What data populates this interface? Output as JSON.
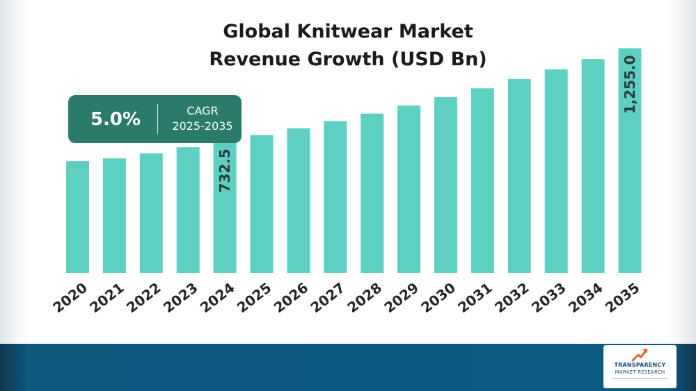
{
  "title_lines": [
    "Global Knitwear Market",
    "Revenue Growth (USD Bn)"
  ],
  "cagr": {
    "value": "5.0%",
    "label": "CAGR",
    "period": "2025-2035"
  },
  "logo": {
    "line1": "TRANSPARENCY",
    "line2": "MARKET RESEARCH",
    "icon": "upward-arrow-icon"
  },
  "colors": {
    "bar": "#5dd0c2",
    "cagr_box": "#2a7b6b",
    "footer": "#0b5a81",
    "label": "#2b3b3a"
  },
  "chart_data": {
    "type": "bar",
    "title": "Global Knitwear Market Revenue Growth (USD Bn)",
    "xlabel": "",
    "ylabel": "",
    "categories": [
      "2020",
      "2021",
      "2022",
      "2023",
      "2024",
      "2025",
      "2026",
      "2027",
      "2028",
      "2029",
      "2030",
      "2031",
      "2032",
      "2033",
      "2034",
      "2035"
    ],
    "values": [
      624,
      640,
      668,
      702,
      732.5,
      770,
      808,
      848,
      890,
      935,
      982,
      1031,
      1083,
      1137,
      1194,
      1255.0
    ],
    "data_labels": {
      "2024": "732.5",
      "2035": "1,255.0"
    },
    "ylim": [
      0,
      1350
    ],
    "grid": false,
    "legend": "none"
  }
}
